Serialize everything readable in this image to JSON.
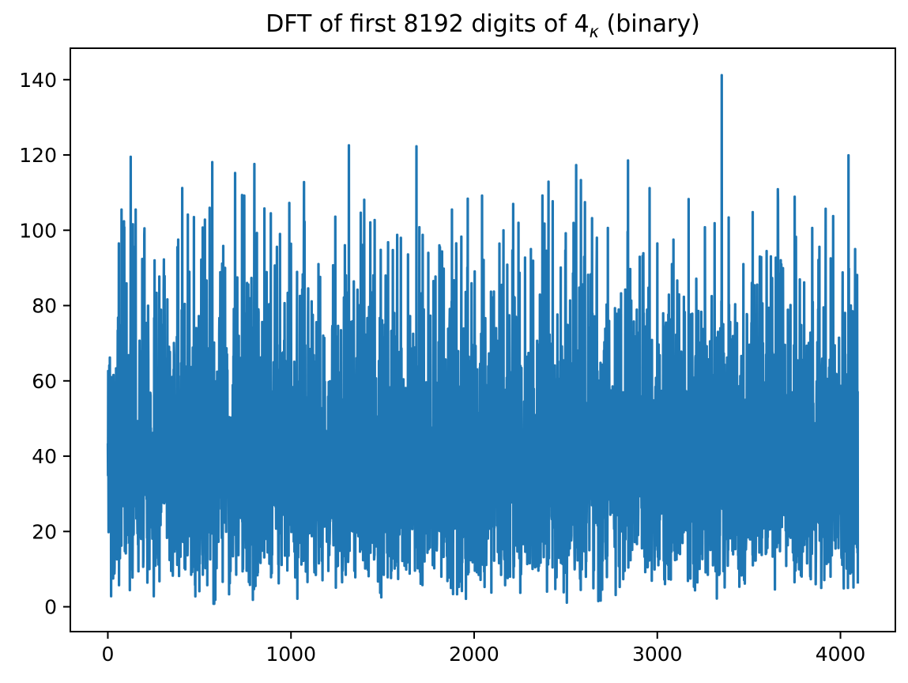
{
  "title": {
    "prefix": "DFT of first 8192 digits of 4",
    "subscript": "κ",
    "suffix": " (binary)"
  },
  "chart_data": {
    "type": "line",
    "title": "DFT of first 8192 digits of 4_κ (binary)",
    "xlabel": "",
    "ylabel": "",
    "x_ticks": [
      0,
      1000,
      2000,
      3000,
      4000
    ],
    "y_ticks": [
      0,
      20,
      40,
      60,
      80,
      100,
      120,
      140
    ],
    "xlim": [
      -204.75,
      4299.75
    ],
    "ylim": [
      -6.6,
      148.35
    ],
    "x_range": [
      0,
      4095
    ],
    "n_points": 4096,
    "grid": false,
    "legend": null,
    "line_color": "#1f77b4",
    "axis_color": "#000000",
    "background_color": "#ffffff",
    "series_description": "Magnitude of DFT of an 8192-sample binary digit sequence; independent Rayleigh-distributed noise values, dense band approx 15-62, occasional dips toward 1 and spikes above 100, maximum approx 141",
    "generator": {
      "seed": 42,
      "sigma": 32,
      "min_clamp": 0.8,
      "max_clamp": 128
    },
    "peaks": [
      [
        60,
        96.5
      ],
      [
        90,
        100.8
      ],
      [
        125,
        119.5
      ],
      [
        152,
        105.5
      ],
      [
        200,
        100.5
      ],
      [
        255,
        92.0
      ],
      [
        310,
        87.8
      ],
      [
        380,
        95.5
      ],
      [
        406,
        111.2
      ],
      [
        470,
        103.5
      ],
      [
        530,
        102.8
      ],
      [
        570,
        118.1
      ],
      [
        640,
        90.0
      ],
      [
        695,
        115.2
      ],
      [
        760,
        86.0
      ],
      [
        800,
        117.6
      ],
      [
        855,
        105.8
      ],
      [
        890,
        104.5
      ],
      [
        940,
        99.0
      ],
      [
        1000,
        96.4
      ],
      [
        1070,
        91.3
      ],
      [
        1150,
        91.0
      ],
      [
        1230,
        90.7
      ],
      [
        1300,
        88.0
      ],
      [
        1400,
        108.1
      ],
      [
        1450,
        88.0
      ],
      [
        1530,
        96.8
      ],
      [
        1600,
        98.0
      ],
      [
        1685,
        122.3
      ],
      [
        1750,
        94.0
      ],
      [
        1810,
        96.0
      ],
      [
        1879,
        105.5
      ],
      [
        1965,
        108.4
      ],
      [
        2043,
        109.2
      ],
      [
        2160,
        100.0
      ],
      [
        2242,
        102.0
      ],
      [
        2310,
        95.0
      ],
      [
        2406,
        112.9
      ],
      [
        2500,
        99.2
      ],
      [
        2557,
        117.3
      ],
      [
        2644,
        103.2
      ],
      [
        2730,
        100.6
      ],
      [
        2838,
        99.6
      ],
      [
        2920,
        93.2
      ],
      [
        3000,
        96.5
      ],
      [
        3080,
        91.0
      ],
      [
        3171,
        108.3
      ],
      [
        3260,
        100.8
      ],
      [
        3352,
        141.2
      ],
      [
        3390,
        103.4
      ],
      [
        3470,
        91.0
      ],
      [
        3560,
        93.0
      ],
      [
        3660,
        91.2
      ],
      [
        3750,
        108.9
      ],
      [
        3846,
        100.6
      ],
      [
        3919,
        105.7
      ],
      [
        4044,
        119.9
      ],
      [
        4080,
        95.0
      ]
    ]
  }
}
